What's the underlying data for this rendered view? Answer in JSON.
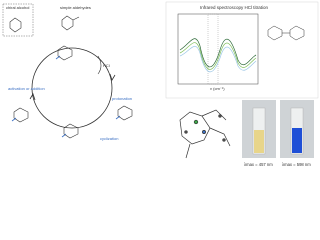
{
  "cycle": {
    "top_left": "chiral alcohol",
    "top_right": "simple aldehydes",
    "acid": "HCl",
    "right_step": "protonation",
    "left_step": "activation or addition",
    "bottom_step": "cyclization"
  },
  "spectrum": {
    "title": "Infrared spectroscopy HCl titration",
    "x_label": "ν (cm⁻¹)"
  },
  "cuvettes": [
    {
      "label": "λmax = 457 nm"
    },
    {
      "label": "λmax = 598 nm"
    }
  ]
}
